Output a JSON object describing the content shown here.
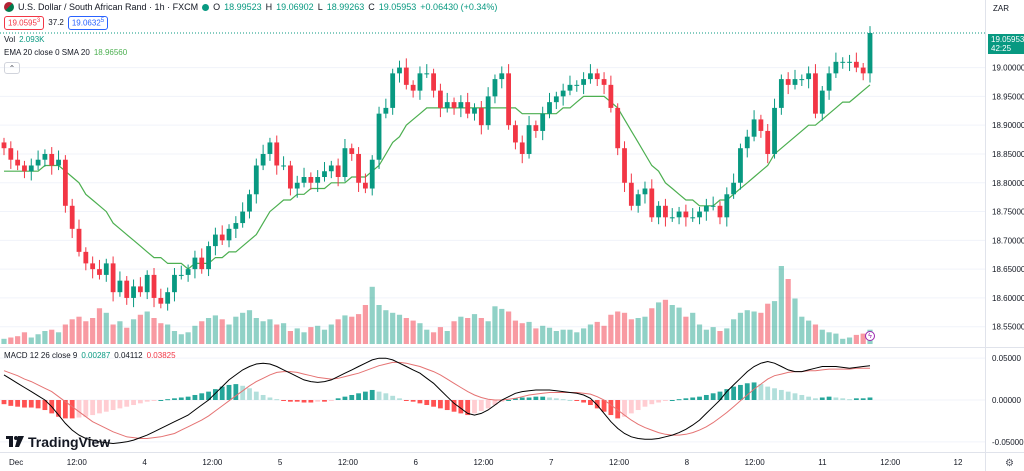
{
  "header": {
    "symbol": "U.S. Dollar / South African Rand · 1h · FXCM",
    "open_label": "O",
    "open": "18.99523",
    "high_label": "H",
    "high": "19.06902",
    "low_label": "L",
    "low": "18.99263",
    "close_label": "C",
    "close": "19.05953",
    "change": "+0.06430 (+0.34%)",
    "sell_price": "19.0595",
    "sell_sup": "3",
    "spread": "37.2",
    "buy_price": "19.0632",
    "buy_sup": "5"
  },
  "volume_legend": {
    "label": "Vol",
    "value": "2.093K"
  },
  "ema_legend": {
    "label": "EMA 20 close 0 SMA 20",
    "value": "18.96560"
  },
  "macd_legend": {
    "label": "MACD 12 26 close 9",
    "hist": "0.00287",
    "macd": "0.04112",
    "signal": "0.03825"
  },
  "price_axis": {
    "currency": "ZAR",
    "labels": [
      "19.00000",
      "18.95000",
      "18.90000",
      "18.85000",
      "18.80000",
      "18.75000",
      "18.70000",
      "18.65000",
      "18.60000",
      "18.55000"
    ],
    "last_price": "19.05953",
    "countdown": "42:25"
  },
  "macd_axis": {
    "labels": [
      "0.05000",
      "0.00000",
      "-0.05000"
    ]
  },
  "time_axis": {
    "labels": [
      "Dec",
      "12:00",
      "4",
      "12:00",
      "5",
      "12:00",
      "6",
      "12:00",
      "7",
      "12:00",
      "8",
      "12:00",
      "11",
      "12:00",
      "12"
    ]
  },
  "branding": {
    "name": "TradingView"
  },
  "colors": {
    "up": "#089981",
    "down": "#f23645",
    "ema": "#4caf50",
    "macd": "#000000",
    "signal": "#e57373"
  },
  "chart_data": {
    "type": "candlestick",
    "ylim": [
      18.52,
      19.1
    ],
    "x_tick_labels": [
      "Dec",
      "12:00",
      "4",
      "12:00",
      "5",
      "12:00",
      "6",
      "12:00",
      "7",
      "12:00",
      "8",
      "12:00",
      "11",
      "12:00",
      "12"
    ],
    "series": [
      {
        "name": "close",
        "values": [
          18.86,
          18.84,
          18.83,
          18.82,
          18.83,
          18.84,
          18.85,
          18.83,
          18.84,
          18.76,
          18.72,
          18.68,
          18.66,
          18.65,
          18.64,
          18.66,
          18.61,
          18.63,
          18.6,
          18.62,
          18.61,
          18.64,
          18.6,
          18.59,
          18.61,
          18.64,
          18.64,
          18.65,
          18.67,
          18.65,
          18.69,
          18.71,
          18.7,
          18.72,
          18.73,
          18.75,
          18.78,
          18.83,
          18.85,
          18.87,
          18.83,
          18.83,
          18.79,
          18.8,
          18.81,
          18.8,
          18.81,
          18.82,
          18.83,
          18.81,
          18.86,
          18.85,
          18.8,
          18.79,
          18.84,
          18.92,
          18.93,
          18.99,
          19.0,
          18.97,
          18.96,
          18.99,
          18.99,
          18.96,
          18.93,
          18.94,
          18.93,
          18.94,
          18.92,
          18.93,
          18.9,
          18.95,
          18.98,
          18.99,
          18.9,
          18.87,
          18.85,
          18.9,
          18.89,
          18.92,
          18.94,
          18.95,
          18.96,
          18.97,
          18.97,
          18.98,
          18.99,
          18.98,
          18.97,
          18.93,
          18.86,
          18.8,
          18.76,
          18.78,
          18.79,
          18.74,
          18.76,
          18.74,
          18.74,
          18.75,
          18.74,
          18.74,
          18.75,
          18.76,
          18.76,
          18.74,
          18.78,
          18.8,
          18.86,
          18.88,
          18.91,
          18.89,
          18.85,
          18.93,
          18.98,
          18.97,
          18.98,
          18.98,
          18.99,
          18.92,
          18.96,
          18.99,
          19.01,
          19.01,
          19.01,
          19.0,
          18.99,
          19.06
        ]
      },
      {
        "name": "volume",
        "values": [
          8,
          10,
          12,
          18,
          10,
          15,
          20,
          22,
          18,
          30,
          38,
          42,
          35,
          40,
          55,
          48,
          30,
          35,
          25,
          38,
          45,
          50,
          40,
          32,
          30,
          20,
          15,
          18,
          28,
          35,
          40,
          44,
          38,
          30,
          42,
          48,
          52,
          40,
          35,
          38,
          30,
          32,
          20,
          24,
          18,
          26,
          28,
          22,
          30,
          38,
          44,
          42,
          46,
          60,
          88,
          60,
          52,
          48,
          45,
          40,
          36,
          32,
          22,
          18,
          26,
          20,
          35,
          42,
          40,
          46,
          40,
          35,
          58,
          54,
          50,
          36,
          32,
          34,
          24,
          28,
          25,
          20,
          22,
          22,
          18,
          24,
          30,
          34,
          28,
          45,
          50,
          48,
          38,
          40,
          42,
          55,
          64,
          68,
          60,
          56,
          42,
          48,
          30,
          22,
          26,
          20,
          24,
          38,
          48,
          52,
          50,
          48,
          62,
          66,
          120,
          100,
          70,
          42,
          36,
          30,
          22,
          18,
          16,
          8,
          10,
          14,
          16,
          22
        ]
      },
      {
        "name": "ema",
        "values": [
          18.82,
          18.82,
          18.82,
          18.82,
          18.82,
          18.82,
          18.83,
          18.83,
          18.83,
          18.82,
          18.81,
          18.8,
          18.78,
          18.77,
          18.76,
          18.75,
          18.73,
          18.72,
          18.71,
          18.7,
          18.69,
          18.68,
          18.67,
          18.67,
          18.66,
          18.66,
          18.66,
          18.65,
          18.66,
          18.66,
          18.66,
          18.67,
          18.67,
          18.68,
          18.68,
          18.69,
          18.7,
          18.71,
          18.73,
          18.75,
          18.76,
          18.77,
          18.77,
          18.78,
          18.78,
          18.79,
          18.79,
          18.79,
          18.8,
          18.8,
          18.8,
          18.81,
          18.81,
          18.81,
          18.82,
          18.83,
          18.85,
          18.87,
          18.88,
          18.9,
          18.91,
          18.92,
          18.93,
          18.93,
          18.93,
          18.93,
          18.93,
          18.93,
          18.93,
          18.93,
          18.93,
          18.93,
          18.93,
          18.93,
          18.93,
          18.93,
          18.92,
          18.92,
          18.92,
          18.92,
          18.92,
          18.92,
          18.93,
          18.93,
          18.94,
          18.95,
          18.95,
          18.95,
          18.95,
          18.94,
          18.93,
          18.91,
          18.89,
          18.87,
          18.85,
          18.83,
          18.82,
          18.8,
          18.79,
          18.78,
          18.77,
          18.77,
          18.76,
          18.76,
          18.76,
          18.77,
          18.77,
          18.78,
          18.79,
          18.8,
          18.81,
          18.82,
          18.83,
          18.85,
          18.86,
          18.87,
          18.88,
          18.89,
          18.9,
          18.9,
          18.91,
          18.92,
          18.93,
          18.94,
          18.94,
          18.95,
          18.96,
          18.97
        ]
      },
      {
        "name": "macd_hist",
        "values": [
          -0.005,
          -0.007,
          -0.008,
          -0.009,
          -0.009,
          -0.01,
          -0.012,
          -0.016,
          -0.02,
          -0.022,
          -0.022,
          -0.021,
          -0.02,
          -0.018,
          -0.016,
          -0.014,
          -0.012,
          -0.01,
          -0.008,
          -0.006,
          -0.004,
          -0.002,
          -0.001,
          0.0,
          0.001,
          0.002,
          0.003,
          0.004,
          0.006,
          0.008,
          0.01,
          0.013,
          0.016,
          0.018,
          0.019,
          0.017,
          0.014,
          0.01,
          0.006,
          0.003,
          0.001,
          -0.001,
          -0.002,
          -0.002,
          -0.003,
          -0.003,
          -0.002,
          -0.002,
          -0.001,
          0.002,
          0.004,
          0.006,
          0.008,
          0.01,
          0.012,
          0.01,
          0.008,
          0.005,
          0.002,
          -0.001,
          -0.002,
          -0.004,
          -0.006,
          -0.008,
          -0.01,
          -0.012,
          -0.014,
          -0.016,
          -0.018,
          -0.016,
          -0.013,
          -0.01,
          -0.006,
          -0.002,
          0.0,
          0.002,
          0.003,
          0.003,
          0.004,
          0.004,
          0.003,
          0.002,
          0.001,
          0.0,
          -0.001,
          -0.003,
          -0.006,
          -0.01,
          -0.014,
          -0.018,
          -0.022,
          -0.02,
          -0.016,
          -0.012,
          -0.008,
          -0.005,
          -0.003,
          -0.001,
          0.0,
          0.001,
          0.002,
          0.003,
          0.004,
          0.006,
          0.008,
          0.01,
          0.013,
          0.016,
          0.018,
          0.02,
          0.021,
          0.019,
          0.016,
          0.014,
          0.012,
          0.01,
          0.008,
          0.006,
          0.004,
          0.002,
          0.003,
          0.004,
          0.003,
          0.002,
          0.001,
          0.002,
          0.002,
          0.003
        ]
      },
      {
        "name": "macd",
        "values": [
          0.03,
          0.025,
          0.02,
          0.015,
          0.01,
          0.005,
          0.0,
          -0.008,
          -0.018,
          -0.028,
          -0.036,
          -0.042,
          -0.046,
          -0.048,
          -0.05,
          -0.051,
          -0.052,
          -0.051,
          -0.05,
          -0.048,
          -0.045,
          -0.042,
          -0.038,
          -0.034,
          -0.03,
          -0.026,
          -0.022,
          -0.018,
          -0.012,
          -0.006,
          0.0,
          0.008,
          0.016,
          0.024,
          0.03,
          0.036,
          0.04,
          0.043,
          0.044,
          0.043,
          0.04,
          0.036,
          0.032,
          0.028,
          0.024,
          0.022,
          0.021,
          0.022,
          0.024,
          0.028,
          0.032,
          0.036,
          0.04,
          0.044,
          0.048,
          0.05,
          0.05,
          0.048,
          0.044,
          0.04,
          0.036,
          0.032,
          0.026,
          0.02,
          0.012,
          0.004,
          -0.004,
          -0.01,
          -0.016,
          -0.018,
          -0.016,
          -0.012,
          -0.006,
          0.0,
          0.004,
          0.008,
          0.01,
          0.011,
          0.012,
          0.012,
          0.012,
          0.011,
          0.01,
          0.009,
          0.008,
          0.006,
          0.002,
          -0.006,
          -0.016,
          -0.026,
          -0.034,
          -0.04,
          -0.044,
          -0.046,
          -0.047,
          -0.047,
          -0.046,
          -0.044,
          -0.042,
          -0.039,
          -0.035,
          -0.03,
          -0.024,
          -0.016,
          -0.008,
          0.0,
          0.01,
          0.018,
          0.026,
          0.034,
          0.04,
          0.044,
          0.046,
          0.044,
          0.04,
          0.036,
          0.034,
          0.034,
          0.036,
          0.038,
          0.04,
          0.04,
          0.04,
          0.039,
          0.038,
          0.039,
          0.04,
          0.041
        ]
      },
      {
        "name": "signal",
        "values": [
          0.035,
          0.032,
          0.029,
          0.025,
          0.022,
          0.018,
          0.014,
          0.01,
          0.004,
          -0.002,
          -0.008,
          -0.014,
          -0.02,
          -0.026,
          -0.03,
          -0.034,
          -0.038,
          -0.041,
          -0.044,
          -0.045,
          -0.046,
          -0.046,
          -0.045,
          -0.044,
          -0.042,
          -0.04,
          -0.036,
          -0.032,
          -0.028,
          -0.024,
          -0.019,
          -0.013,
          -0.007,
          -0.001,
          0.005,
          0.011,
          0.017,
          0.022,
          0.026,
          0.03,
          0.033,
          0.034,
          0.034,
          0.033,
          0.031,
          0.029,
          0.027,
          0.026,
          0.025,
          0.026,
          0.028,
          0.03,
          0.032,
          0.035,
          0.038,
          0.041,
          0.043,
          0.045,
          0.045,
          0.044,
          0.042,
          0.04,
          0.037,
          0.034,
          0.03,
          0.025,
          0.02,
          0.015,
          0.01,
          0.006,
          0.003,
          0.001,
          0.0,
          0.0,
          0.001,
          0.002,
          0.004,
          0.006,
          0.007,
          0.008,
          0.009,
          0.009,
          0.009,
          0.009,
          0.009,
          0.008,
          0.007,
          0.004,
          0.0,
          -0.006,
          -0.012,
          -0.018,
          -0.024,
          -0.029,
          -0.033,
          -0.036,
          -0.039,
          -0.041,
          -0.042,
          -0.042,
          -0.041,
          -0.039,
          -0.036,
          -0.032,
          -0.027,
          -0.021,
          -0.015,
          -0.008,
          -0.001,
          0.006,
          0.013,
          0.019,
          0.025,
          0.029,
          0.031,
          0.033,
          0.034,
          0.034,
          0.035,
          0.035,
          0.036,
          0.037,
          0.037,
          0.037,
          0.037,
          0.038,
          0.038,
          0.038
        ]
      }
    ]
  }
}
